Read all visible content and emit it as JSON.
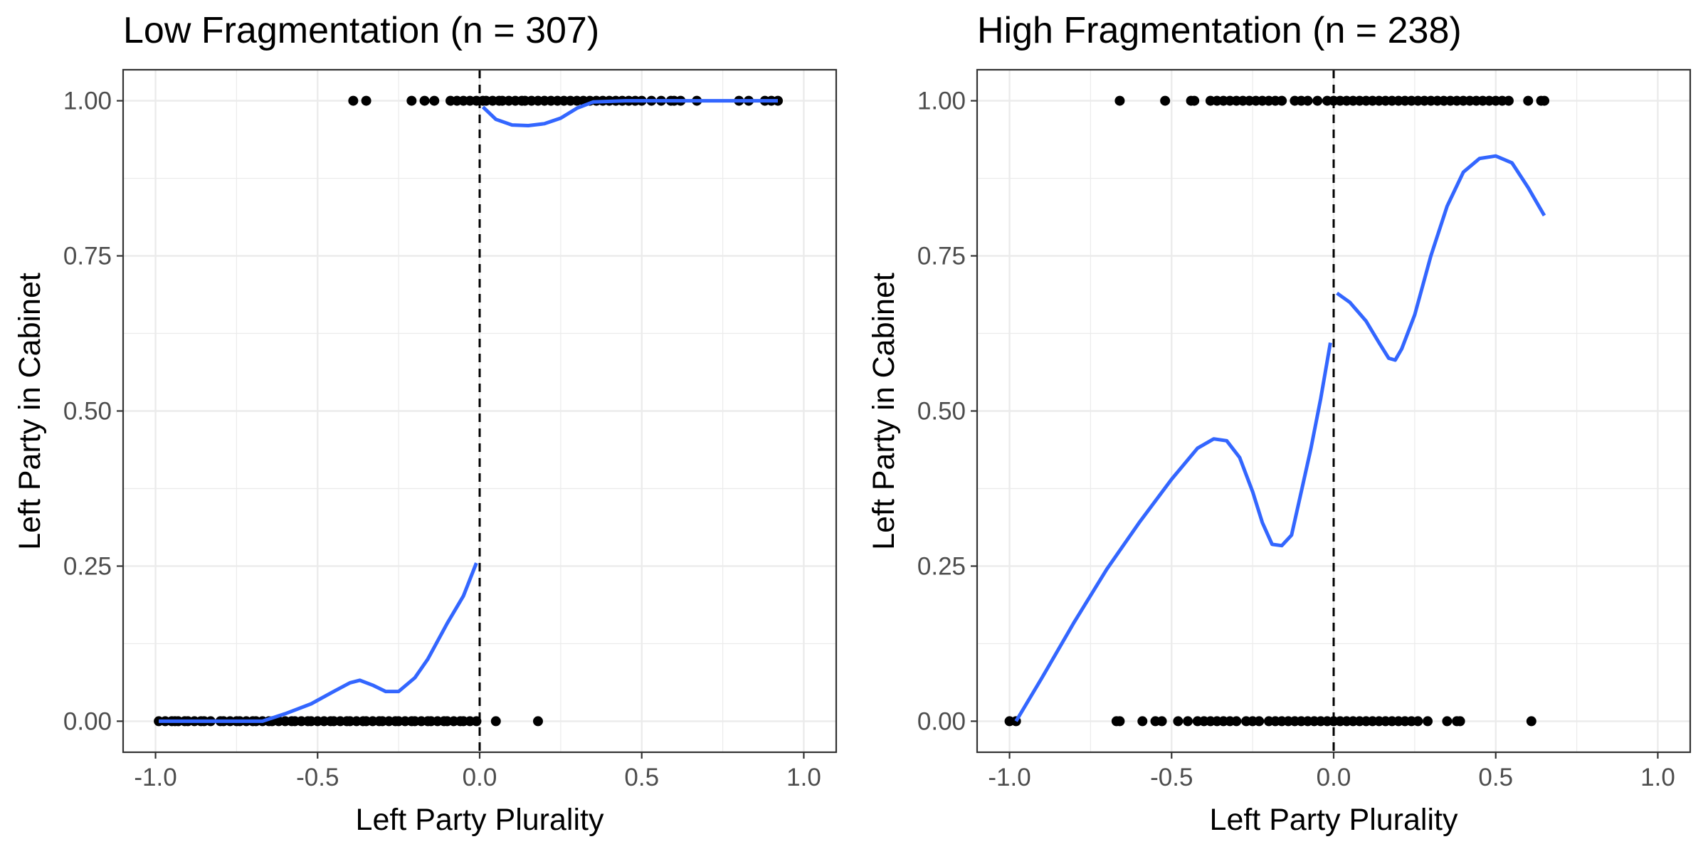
{
  "colors": {
    "smooth_line": "#3366FF",
    "points": "#000000",
    "grid": "#EBEBEB",
    "panel_border": "#333333",
    "cutoff_line": "#000000",
    "tick_text": "#4D4D4D"
  },
  "chart_data": [
    {
      "type": "scatter",
      "title": "Low Fragmentation (n = 307)",
      "xlabel": "Left Party Plurality",
      "ylabel": "Left Party in Cabinet",
      "xlim": [
        -1.1,
        1.1
      ],
      "ylim": [
        -0.05,
        1.05
      ],
      "x_ticks": [
        -1.0,
        -0.5,
        0.0,
        0.5,
        1.0
      ],
      "x_tick_labels": [
        "-1.0",
        "-0.5",
        "0.0",
        "0.5",
        "1.0"
      ],
      "y_ticks": [
        0,
        0.25,
        0.5,
        0.75,
        1.0
      ],
      "y_tick_labels": [
        "0.00",
        "0.25",
        "0.50",
        "0.75",
        "1.00"
      ],
      "grid": true,
      "cutoff_x": 0,
      "cutoff_style": "dashed",
      "points": {
        "y0_x": [
          -0.99,
          -0.97,
          -0.95,
          -0.94,
          -0.93,
          -0.91,
          -0.9,
          -0.88,
          -0.86,
          -0.85,
          -0.83,
          -0.8,
          -0.79,
          -0.77,
          -0.75,
          -0.74,
          -0.72,
          -0.7,
          -0.69,
          -0.67,
          -0.65,
          -0.64,
          -0.62,
          -0.6,
          -0.58,
          -0.57,
          -0.55,
          -0.53,
          -0.52,
          -0.5,
          -0.48,
          -0.46,
          -0.45,
          -0.43,
          -0.41,
          -0.4,
          -0.38,
          -0.36,
          -0.35,
          -0.33,
          -0.31,
          -0.3,
          -0.28,
          -0.26,
          -0.25,
          -0.23,
          -0.21,
          -0.2,
          -0.18,
          -0.16,
          -0.15,
          -0.13,
          -0.11,
          -0.1,
          -0.08,
          -0.06,
          -0.05,
          -0.03,
          -0.01,
          0.05,
          0.18
        ],
        "y1_x": [
          -0.39,
          -0.35,
          -0.21,
          -0.17,
          -0.14,
          -0.09,
          -0.07,
          -0.05,
          -0.03,
          -0.01,
          0.01,
          0.02,
          0.04,
          0.06,
          0.07,
          0.09,
          0.11,
          0.13,
          0.14,
          0.16,
          0.18,
          0.2,
          0.22,
          0.24,
          0.26,
          0.28,
          0.3,
          0.32,
          0.34,
          0.36,
          0.38,
          0.4,
          0.42,
          0.44,
          0.46,
          0.48,
          0.5,
          0.53,
          0.56,
          0.59,
          0.6,
          0.62,
          0.67,
          0.8,
          0.83,
          0.88,
          0.9,
          0.92
        ]
      },
      "smooth_segments": [
        [
          [
            -0.99,
            0.0
          ],
          [
            -0.9,
            0.0
          ],
          [
            -0.8,
            0.0
          ],
          [
            -0.67,
            0.0
          ],
          [
            -0.6,
            0.012
          ],
          [
            -0.52,
            0.028
          ],
          [
            -0.45,
            0.048
          ],
          [
            -0.4,
            0.062
          ],
          [
            -0.37,
            0.066
          ],
          [
            -0.33,
            0.058
          ],
          [
            -0.29,
            0.048
          ],
          [
            -0.25,
            0.048
          ],
          [
            -0.2,
            0.07
          ],
          [
            -0.16,
            0.1
          ],
          [
            -0.1,
            0.158
          ],
          [
            -0.05,
            0.202
          ],
          [
            -0.01,
            0.255
          ]
        ],
        [
          [
            0.01,
            0.99
          ],
          [
            0.05,
            0.97
          ],
          [
            0.1,
            0.961
          ],
          [
            0.15,
            0.96
          ],
          [
            0.2,
            0.963
          ],
          [
            0.25,
            0.972
          ],
          [
            0.3,
            0.988
          ],
          [
            0.35,
            0.998
          ],
          [
            0.45,
            1.0
          ],
          [
            0.6,
            1.0
          ],
          [
            0.75,
            1.0
          ],
          [
            0.92,
            1.0
          ]
        ]
      ]
    },
    {
      "type": "scatter",
      "title": "High Fragmentation (n = 238)",
      "xlabel": "Left Party Plurality",
      "ylabel": "Left Party in Cabinet",
      "xlim": [
        -1.1,
        1.1
      ],
      "ylim": [
        -0.05,
        1.05
      ],
      "x_ticks": [
        -1.0,
        -0.5,
        0.0,
        0.5,
        1.0
      ],
      "x_tick_labels": [
        "-1.0",
        "-0.5",
        "0.0",
        "0.5",
        "1.0"
      ],
      "y_ticks": [
        0,
        0.25,
        0.5,
        0.75,
        1.0
      ],
      "y_tick_labels": [
        "0.00",
        "0.25",
        "0.50",
        "0.75",
        "1.00"
      ],
      "grid": true,
      "cutoff_x": 0,
      "cutoff_style": "dashed",
      "points": {
        "y0_x": [
          -1.0,
          -0.98,
          -0.67,
          -0.66,
          -0.59,
          -0.55,
          -0.53,
          -0.48,
          -0.45,
          -0.42,
          -0.4,
          -0.38,
          -0.36,
          -0.34,
          -0.32,
          -0.3,
          -0.27,
          -0.25,
          -0.23,
          -0.2,
          -0.18,
          -0.16,
          -0.14,
          -0.12,
          -0.1,
          -0.08,
          -0.06,
          -0.04,
          -0.02,
          0.0,
          0.02,
          0.04,
          0.06,
          0.08,
          0.1,
          0.12,
          0.14,
          0.16,
          0.18,
          0.2,
          0.22,
          0.24,
          0.26,
          0.29,
          0.35,
          0.38,
          0.39,
          0.61
        ],
        "y1_x": [
          -0.66,
          -0.52,
          -0.44,
          -0.43,
          -0.38,
          -0.36,
          -0.34,
          -0.32,
          -0.3,
          -0.28,
          -0.26,
          -0.24,
          -0.22,
          -0.2,
          -0.18,
          -0.16,
          -0.12,
          -0.1,
          -0.08,
          -0.05,
          -0.02,
          0.0,
          0.02,
          0.04,
          0.06,
          0.08,
          0.1,
          0.12,
          0.14,
          0.16,
          0.18,
          0.2,
          0.22,
          0.24,
          0.26,
          0.28,
          0.3,
          0.32,
          0.34,
          0.36,
          0.38,
          0.4,
          0.42,
          0.44,
          0.46,
          0.48,
          0.5,
          0.52,
          0.54,
          0.6,
          0.64,
          0.65
        ]
      },
      "smooth_segments": [
        [
          [
            -0.98,
            0.0
          ],
          [
            -0.9,
            0.07
          ],
          [
            -0.8,
            0.16
          ],
          [
            -0.7,
            0.245
          ],
          [
            -0.6,
            0.32
          ],
          [
            -0.5,
            0.39
          ],
          [
            -0.42,
            0.44
          ],
          [
            -0.37,
            0.455
          ],
          [
            -0.33,
            0.452
          ],
          [
            -0.29,
            0.425
          ],
          [
            -0.25,
            0.37
          ],
          [
            -0.22,
            0.32
          ],
          [
            -0.19,
            0.285
          ],
          [
            -0.16,
            0.283
          ],
          [
            -0.13,
            0.3
          ],
          [
            -0.1,
            0.37
          ],
          [
            -0.07,
            0.44
          ],
          [
            -0.04,
            0.52
          ],
          [
            -0.01,
            0.61
          ]
        ],
        [
          [
            0.01,
            0.69
          ],
          [
            0.05,
            0.675
          ],
          [
            0.1,
            0.645
          ],
          [
            0.14,
            0.61
          ],
          [
            0.17,
            0.585
          ],
          [
            0.19,
            0.582
          ],
          [
            0.21,
            0.6
          ],
          [
            0.25,
            0.655
          ],
          [
            0.3,
            0.75
          ],
          [
            0.35,
            0.83
          ],
          [
            0.4,
            0.885
          ],
          [
            0.45,
            0.907
          ],
          [
            0.5,
            0.911
          ],
          [
            0.55,
            0.9
          ],
          [
            0.6,
            0.86
          ],
          [
            0.65,
            0.815
          ]
        ]
      ]
    }
  ]
}
